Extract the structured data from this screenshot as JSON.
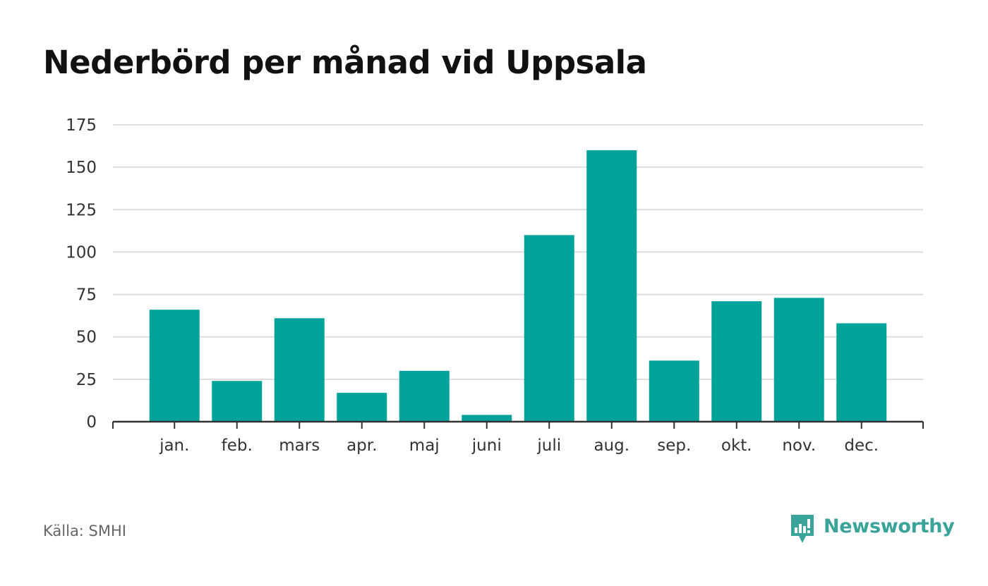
{
  "page": {
    "source": "Källa: SMHI",
    "brand": "Newsworthy"
  },
  "colors": {
    "bar": "#00a39a",
    "grid": "#dddddd",
    "axis": "#333333",
    "brand": "#3aa39a"
  },
  "icons": {
    "brand_logo": "newsworthy-logo-icon"
  },
  "chart_data": {
    "type": "bar",
    "title": "Nederbörd per månad vid Uppsala",
    "xlabel": "",
    "ylabel": "",
    "categories": [
      "jan.",
      "feb.",
      "mars",
      "apr.",
      "maj",
      "juni",
      "juli",
      "aug.",
      "sep.",
      "okt.",
      "nov.",
      "dec."
    ],
    "values": [
      66,
      24,
      61,
      17,
      30,
      4,
      110,
      160,
      36,
      71,
      73,
      58
    ],
    "ylim": [
      0,
      175
    ],
    "yticks": [
      0,
      25,
      50,
      75,
      100,
      125,
      150,
      175
    ],
    "grid": true,
    "legend": "none"
  }
}
